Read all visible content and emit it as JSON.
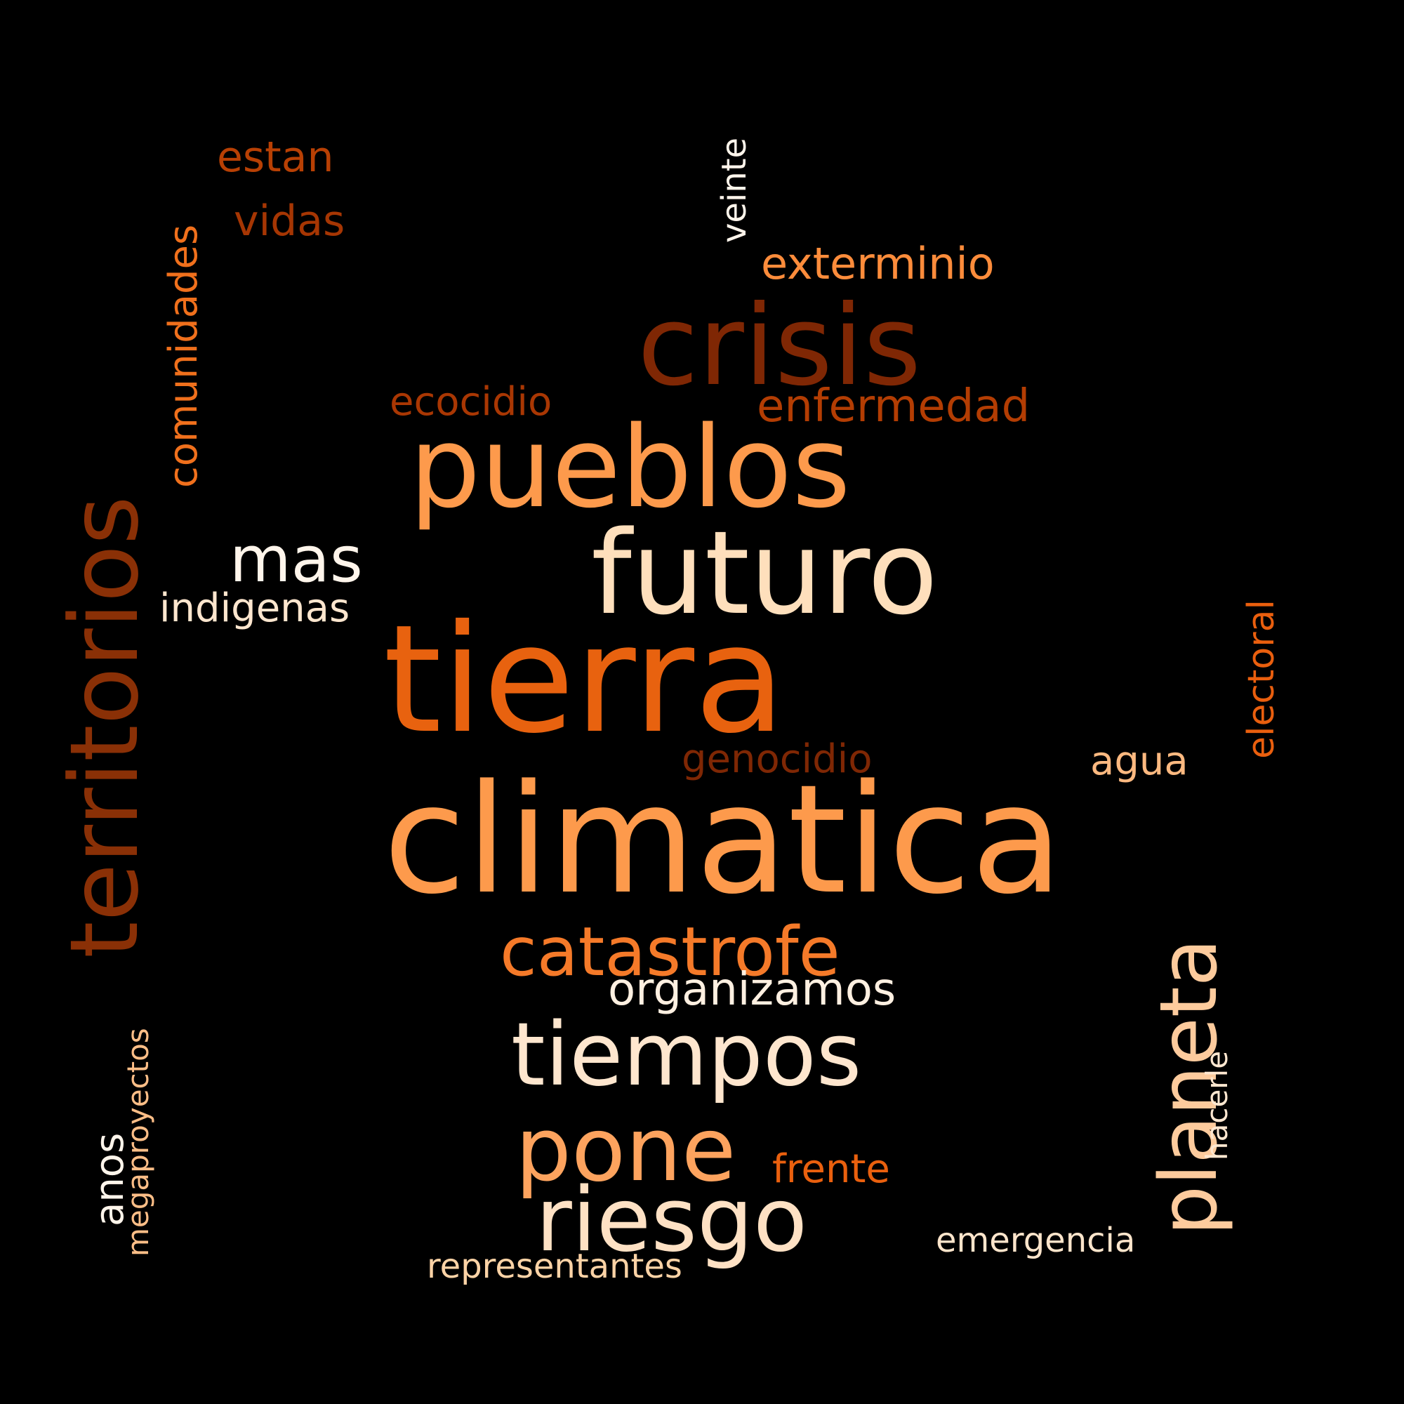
{
  "background": "#000000",
  "words": [
    {
      "text": "climatica",
      "color": "#fd9a4c"
    },
    {
      "text": "tierra",
      "color": "#e8620f"
    },
    {
      "text": "territorios",
      "color": "#8a3006"
    },
    {
      "text": "futuro",
      "color": "#fedfbc"
    },
    {
      "text": "pueblos",
      "color": "#fd9a4c"
    },
    {
      "text": "crisis",
      "color": "#7f2704"
    },
    {
      "text": "tiempos",
      "color": "#fee6ce"
    },
    {
      "text": "riesgo",
      "color": "#fee1c4"
    },
    {
      "text": "pone",
      "color": "#fda35e"
    },
    {
      "text": "planeta",
      "color": "#fdcb9d"
    },
    {
      "text": "catastrofe",
      "color": "#f57a29"
    },
    {
      "text": "mas",
      "color": "#fff5eb"
    },
    {
      "text": "comunidades",
      "color": "#f0701c"
    },
    {
      "text": "exterminio",
      "color": "#fd8c3b"
    },
    {
      "text": "enfermedad",
      "color": "#b33d03"
    },
    {
      "text": "organizamos",
      "color": "#fff0e1"
    },
    {
      "text": "indigenas",
      "color": "#fee6ce"
    },
    {
      "text": "ecocidio",
      "color": "#a93703"
    },
    {
      "text": "genocidio",
      "color": "#7f2704"
    },
    {
      "text": "vidas",
      "color": "#a63603"
    },
    {
      "text": "estan",
      "color": "#b84004"
    },
    {
      "text": "veinte",
      "color": "#fff5eb"
    },
    {
      "text": "electoral",
      "color": "#ea5f0e"
    },
    {
      "text": "agua",
      "color": "#fdb980"
    },
    {
      "text": "frente",
      "color": "#ea600e"
    },
    {
      "text": "emergencia",
      "color": "#fee5cb"
    },
    {
      "text": "representantes",
      "color": "#fdd3a6"
    },
    {
      "text": "hacerle",
      "color": "#fee7d0"
    },
    {
      "text": "anos",
      "color": "#fff5eb"
    },
    {
      "text": "megaproyectos",
      "color": "#fdbe87"
    }
  ]
}
